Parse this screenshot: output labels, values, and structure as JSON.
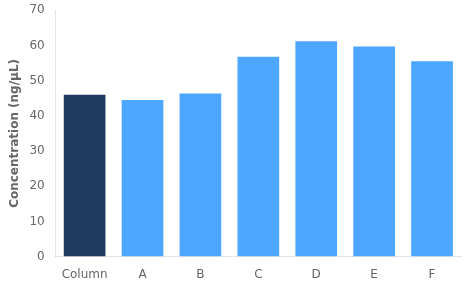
{
  "chart_data": {
    "type": "bar",
    "ylabel": "Concentration (ng/μL)",
    "categories": [
      "Column",
      "A",
      "B",
      "C",
      "D",
      "E",
      "F"
    ],
    "values": [
      46.0,
      44.5,
      46.3,
      56.8,
      61.2,
      59.7,
      55.5
    ],
    "colors": [
      "#1e3a5f",
      "#4da6ff",
      "#4da6ff",
      "#4da6ff",
      "#4da6ff",
      "#4da6ff",
      "#4da6ff"
    ],
    "ylim": [
      0,
      70
    ],
    "yticks": [
      0,
      10,
      20,
      30,
      40,
      50,
      60,
      70
    ],
    "grid": false
  }
}
